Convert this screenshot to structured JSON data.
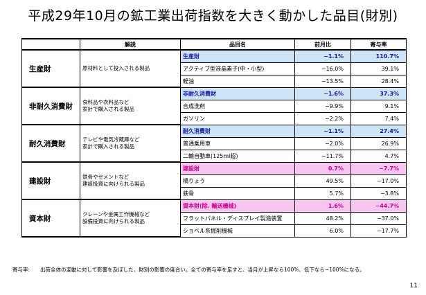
{
  "title": "平成29年10月の鉱工業出荷指数を大きく動かした品目(財別)",
  "headers": {
    "col_desc": "解説",
    "col_item": "品目名",
    "col_mom": "前月比",
    "col_contrib": "寄与率"
  },
  "groups": [
    {
      "category": "生産財",
      "desc": "原材料として投入される製品",
      "rows": [
        {
          "name": "生産財",
          "mom": "−1.1%",
          "contrib": "110.7%"
        },
        {
          "name": "アクティブ型液晶素子(中・小型)",
          "mom": "−16.0%",
          "contrib": "39.1%"
        },
        {
          "name": "軽油",
          "mom": "−13.5%",
          "contrib": "28.4%"
        }
      ]
    },
    {
      "category": "非耐久消費財",
      "desc": "食料品や衣料品など\n家計で購入される製品",
      "rows": [
        {
          "name": "非耐久消費財",
          "mom": "−1.6%",
          "contrib": "37.3%"
        },
        {
          "name": "合成洗剤",
          "mom": "−9.9%",
          "contrib": "9.1%"
        },
        {
          "name": "ガソリン",
          "mom": "−2.2%",
          "contrib": "7.4%"
        }
      ]
    },
    {
      "category": "耐久消費財",
      "desc": "テレビや電気冷蔵庫など\n家計で購入される製品",
      "rows": [
        {
          "name": "耐久消費財",
          "mom": "−1.1%",
          "contrib": "27.4%"
        },
        {
          "name": "普通乗用車",
          "mom": "−2.0%",
          "contrib": "26.9%"
        },
        {
          "name": "二輪自動車(125ml超)",
          "mom": "−11.7%",
          "contrib": "4.7%"
        }
      ]
    },
    {
      "category": "建設財",
      "desc": "鉄骨やセメントなど\n建設投資に向けられる製品",
      "rows": [
        {
          "name": "建設財",
          "mom": "0.7%",
          "contrib": "−7.7%"
        },
        {
          "name": "橋りょう",
          "mom": "49.5%",
          "contrib": "−17.0%"
        },
        {
          "name": "鉄骨",
          "mom": "5.7%",
          "contrib": "−3.8%"
        }
      ]
    },
    {
      "category": "資本財",
      "desc": "クレーンや金属工作機械など\n設備投資に向けられる製品",
      "rows": [
        {
          "name": "資本財(除. 輸送機械)",
          "mom": "1.6%",
          "contrib": "−44.7%"
        },
        {
          "name": "フラットパネル・ディスプレイ製造装置",
          "mom": "48.2%",
          "contrib": "−37.0%"
        },
        {
          "name": "ショベル系掘削機械",
          "mom": "6.0%",
          "contrib": "−17.7%"
        }
      ]
    }
  ],
  "note": {
    "label": "寄与率:",
    "text": "出荷全体の変動に対して影響を及ぼした、財別の影響の度合い。全ての寄与率を足すと、当月が上昇なら100%、低下なら−100%になる。"
  },
  "page_number": "11",
  "colors": {
    "blue_highlight_bg": "#cde4f7",
    "blue_highlight_text": "#1515a8",
    "pink_highlight_bg": "#f6c5f0",
    "pink_highlight_text": "#d0008a"
  }
}
